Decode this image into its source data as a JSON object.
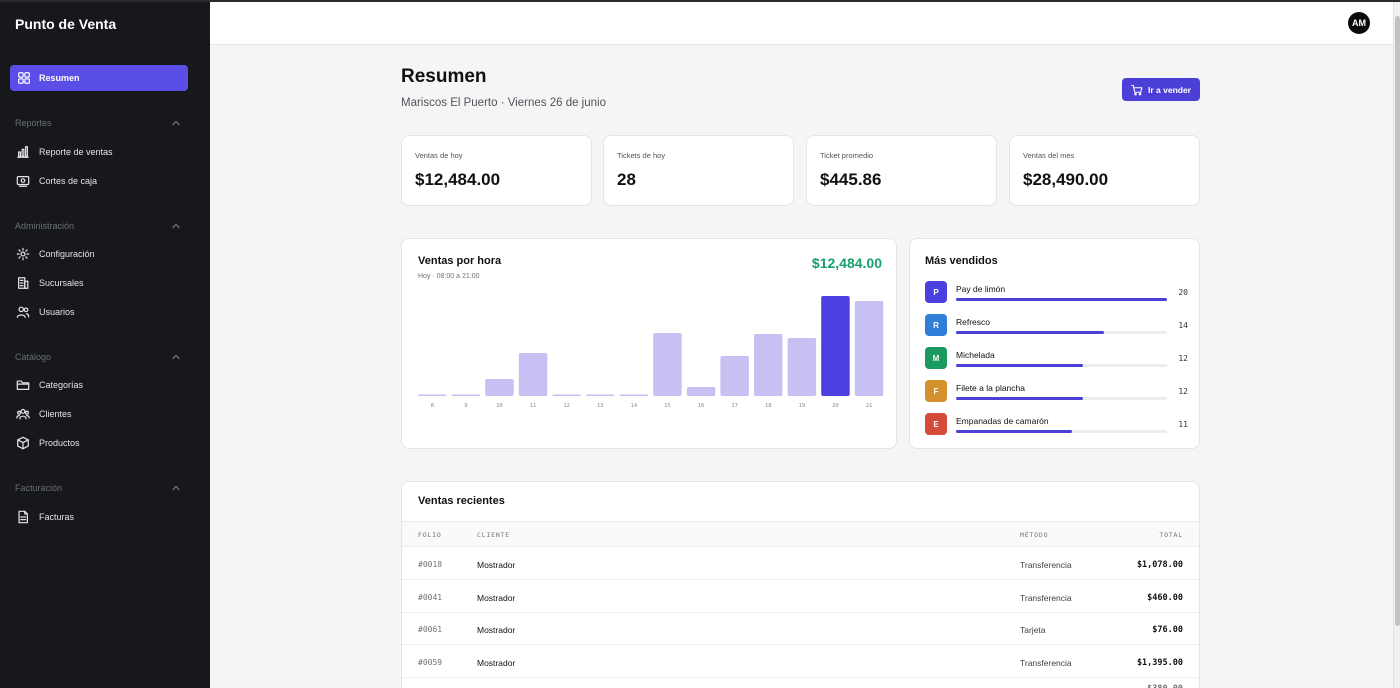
{
  "app": {
    "brand": "Punto de Venta"
  },
  "sidebar": {
    "active": {
      "label": "Resumen"
    },
    "sections": [
      {
        "title": "Reportes",
        "items": [
          {
            "label": "Reporte de ventas"
          },
          {
            "label": "Cortes de caja"
          }
        ]
      },
      {
        "title": "Administración",
        "items": [
          {
            "label": "Configuración"
          },
          {
            "label": "Sucursales"
          },
          {
            "label": "Usuarios"
          }
        ]
      },
      {
        "title": "Catálogo",
        "items": [
          {
            "label": "Categorías"
          },
          {
            "label": "Clientes"
          },
          {
            "label": "Productos"
          }
        ]
      },
      {
        "title": "Facturación",
        "items": [
          {
            "label": "Facturas"
          }
        ]
      }
    ]
  },
  "header": {
    "avatar": "AM"
  },
  "page": {
    "title": "Resumen",
    "subtitle": "Mariscos El Puerto · Viernes 26 de junio",
    "sell_button": "Ir a vender"
  },
  "stats": [
    {
      "label": "Ventas de hoy",
      "value": "$12,484.00"
    },
    {
      "label": "Tickets de hoy",
      "value": "28"
    },
    {
      "label": "Ticket promedio",
      "value": "$445.86"
    },
    {
      "label": "Ventas del mes",
      "value": "$28,490.00"
    }
  ],
  "sales_chart": {
    "title": "Ventas por hora",
    "subtitle": "Hoy · 08:00 a 21:00",
    "total": "$12,484.00"
  },
  "chart_data": {
    "type": "bar",
    "title": "Ventas por hora",
    "categories": [
      "8",
      "9",
      "10",
      "11",
      "12",
      "13",
      "14",
      "15",
      "16",
      "17",
      "18",
      "19",
      "20",
      "21"
    ],
    "values": [
      1.5,
      1.5,
      17,
      43,
      1.5,
      1.5,
      1.5,
      63,
      9,
      40,
      62,
      58,
      100,
      95
    ],
    "highlight_index": 12,
    "ylim": [
      0,
      100
    ],
    "grid": false,
    "colors": {
      "bar": "#c6c0f3",
      "highlight": "#4b3fe0"
    }
  },
  "top_sellers": {
    "title": "Más vendidos",
    "items": [
      {
        "initial": "P",
        "name": "Pay de limón",
        "count": 20,
        "share": 1.0,
        "color": "#4b3fe0"
      },
      {
        "initial": "R",
        "name": "Refresco",
        "count": 14,
        "share": 0.7,
        "color": "#2f7fd8"
      },
      {
        "initial": "M",
        "name": "Michelada",
        "count": 12,
        "share": 0.6,
        "color": "#1a9a5e"
      },
      {
        "initial": "F",
        "name": "Filete a la plancha",
        "count": 12,
        "share": 0.6,
        "color": "#d4902c"
      },
      {
        "initial": "E",
        "name": "Empanadas de camarón",
        "count": 11,
        "share": 0.55,
        "color": "#d44b3a"
      }
    ]
  },
  "recent_sales": {
    "title": "Ventas recientes",
    "columns": {
      "folio": "FOLIO",
      "client": "CLIENTE",
      "method": "MÉTODO",
      "total": "TOTAL"
    },
    "rows": [
      {
        "folio": "#0018",
        "client": "Mostrador",
        "method": "Transferencia",
        "total": "$1,078.00"
      },
      {
        "folio": "#0041",
        "client": "Mostrador",
        "method": "Transferencia",
        "total": "$460.00"
      },
      {
        "folio": "#0061",
        "client": "Mostrador",
        "method": "Tarjeta",
        "total": "$76.00"
      },
      {
        "folio": "#0059",
        "client": "Mostrador",
        "method": "Transferencia",
        "total": "$1,395.00"
      }
    ]
  }
}
